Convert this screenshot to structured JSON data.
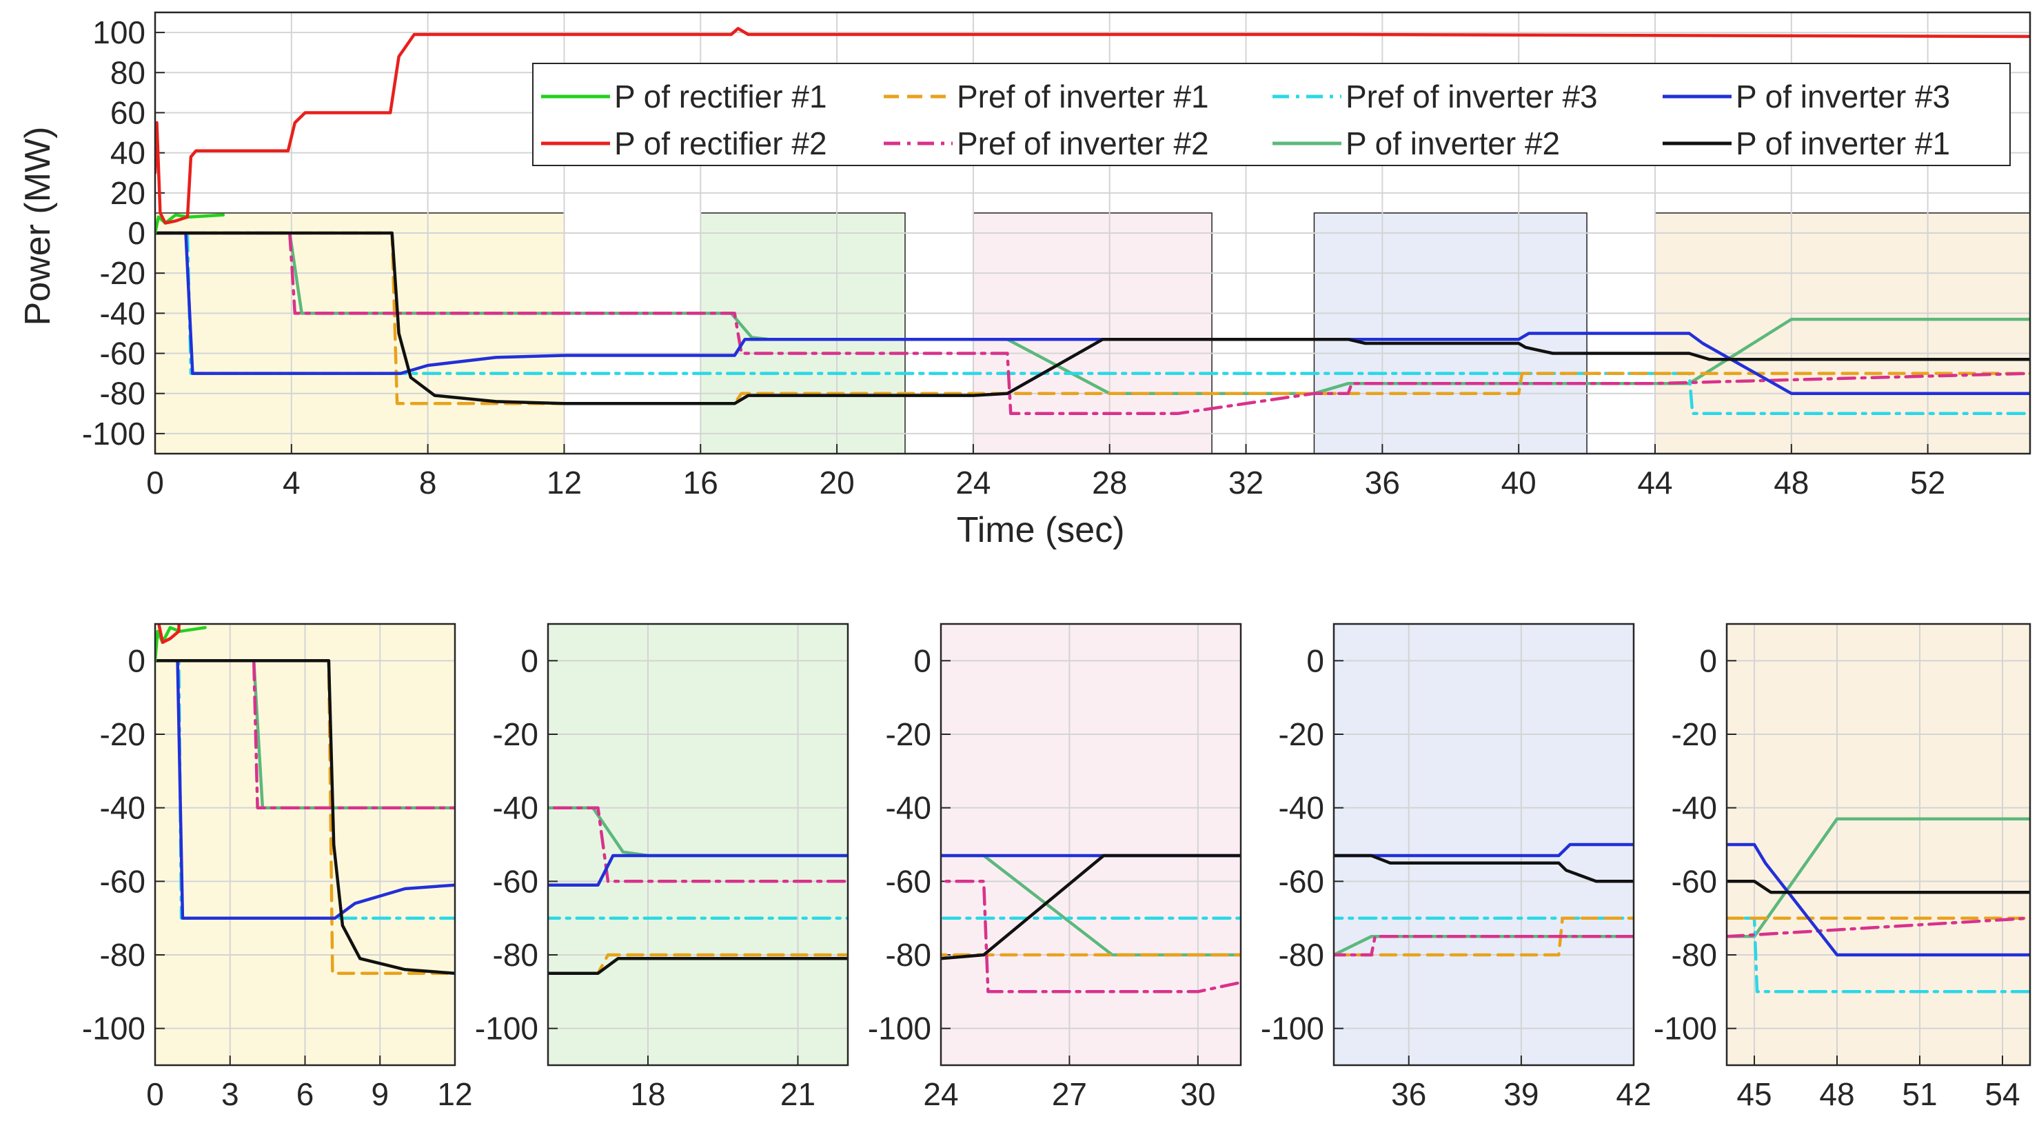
{
  "chart_data": [
    {
      "id": "main",
      "type": "line",
      "title": "",
      "xlabel": "Time (sec)",
      "ylabel": "Power (MW)",
      "xlim": [
        0,
        55
      ],
      "ylim": [
        -110,
        110
      ],
      "xticks": [
        0,
        4,
        8,
        12,
        16,
        20,
        24,
        28,
        32,
        36,
        40,
        44,
        48,
        52
      ],
      "yticks": [
        100,
        80,
        60,
        40,
        20,
        0,
        -20,
        -40,
        -60,
        -80,
        -100
      ],
      "grid": true,
      "legend_position": "top-right",
      "legend_columns": 4,
      "highlight_regions": [
        {
          "x": [
            0,
            12
          ],
          "y": [
            -110,
            10
          ],
          "color": "#fdf8dc"
        },
        {
          "x": [
            16,
            22
          ],
          "y": [
            -110,
            10
          ],
          "color": "#e6f5e1"
        },
        {
          "x": [
            24,
            31
          ],
          "y": [
            -110,
            10
          ],
          "color": "#fbeef3"
        },
        {
          "x": [
            34,
            42
          ],
          "y": [
            -110,
            10
          ],
          "color": "#e7ecf8"
        },
        {
          "x": [
            44,
            55
          ],
          "y": [
            -110,
            10
          ],
          "color": "#fbf1e1"
        }
      ],
      "series": [
        {
          "name": "P of rectifier #1",
          "color": "#23d11f",
          "dash": "solid",
          "x": [
            0,
            0.1,
            0.3,
            0.6,
            1,
            2
          ],
          "y": [
            0,
            8,
            5,
            9,
            8,
            9
          ]
        },
        {
          "name": "P of rectifier #2",
          "color": "#e8201c",
          "dash": "solid",
          "x": [
            0,
            0.05,
            0.15,
            0.3,
            0.6,
            0.95,
            1.05,
            1.2,
            3.9,
            4.1,
            4.4,
            6.9,
            7.15,
            7.6,
            16.9,
            17.1,
            17.4,
            35,
            55
          ],
          "y": [
            30,
            55,
            10,
            5,
            6,
            8,
            38,
            41,
            41,
            55,
            60,
            60,
            88,
            99,
            99,
            102,
            99,
            99,
            98
          ]
        },
        {
          "name": "Pref of inverter #1",
          "color": "#e8a21c",
          "dash": "dash",
          "x": [
            0,
            6.95,
            7.1,
            17,
            17.2,
            20,
            24,
            25,
            30,
            34,
            35,
            40,
            40.1,
            55
          ],
          "y": [
            0,
            0,
            -85,
            -85,
            -80,
            -80,
            -80,
            -80,
            -80,
            -80,
            -80,
            -80,
            -70,
            -70
          ]
        },
        {
          "name": "Pref of inverter #2",
          "color": "#d8328c",
          "dash": "dashdot",
          "x": [
            0,
            3.95,
            4.1,
            17,
            17.2,
            25,
            25.1,
            30,
            34,
            35,
            35.1,
            40,
            44,
            55
          ],
          "y": [
            0,
            0,
            -40,
            -40,
            -60,
            -60,
            -90,
            -90,
            -80,
            -80,
            -75,
            -75,
            -75,
            -70
          ]
        },
        {
          "name": "Pref of inverter #3",
          "color": "#2ad8e6",
          "dash": "dashdot",
          "x": [
            0,
            0.95,
            1.05,
            45,
            45.1,
            55
          ],
          "y": [
            0,
            0,
            -70,
            -70,
            -90,
            -90
          ]
        },
        {
          "name": "P of inverter #2",
          "color": "#5cb87c",
          "dash": "solid",
          "x": [
            0,
            3.95,
            4.3,
            16.9,
            17.5,
            18,
            25,
            28,
            34,
            35,
            40,
            45,
            48,
            55
          ],
          "y": [
            0,
            0,
            -40,
            -40,
            -52,
            -53,
            -53,
            -80,
            -80,
            -75,
            -75,
            -75,
            -43,
            -43
          ]
        },
        {
          "name": "P of inverter #3",
          "color": "#2230d8",
          "dash": "solid",
          "x": [
            0,
            0.9,
            1.1,
            7.2,
            8,
            10,
            12,
            17,
            17.3,
            22,
            25,
            34,
            40,
            40.3,
            44,
            45,
            45.4,
            48,
            51,
            55
          ],
          "y": [
            0,
            0,
            -70,
            -70,
            -66,
            -62,
            -61,
            -61,
            -53,
            -53,
            -53,
            -53,
            -53,
            -50,
            -50,
            -50,
            -55,
            -80,
            -80,
            -80
          ]
        },
        {
          "name": "P of inverter #1",
          "color": "#111111",
          "dash": "solid",
          "x": [
            0,
            6.95,
            7.15,
            7.5,
            8.2,
            10,
            12,
            16,
            17,
            17.4,
            22,
            24,
            25,
            27.8,
            34,
            35,
            35.5,
            40,
            40.2,
            41,
            44,
            45,
            45.6,
            55
          ],
          "y": [
            0,
            0,
            -50,
            -72,
            -81,
            -84,
            -85,
            -85,
            -85,
            -81,
            -81,
            -81,
            -80,
            -53,
            -53,
            -53,
            -55,
            -55,
            -57,
            -60,
            -60,
            -60,
            -63,
            -63
          ]
        }
      ],
      "legend_order": [
        "P of rectifier #1",
        "Pref of inverter #1",
        "Pref of inverter #3",
        "P of inverter #3",
        "P of rectifier #2",
        "Pref of inverter #2",
        "P of inverter #2",
        "P of inverter #1"
      ]
    },
    {
      "id": "zoom1",
      "type": "line",
      "xlim": [
        0,
        12
      ],
      "ylim": [
        -110,
        10
      ],
      "xticks": [
        0,
        3,
        6,
        9,
        12
      ],
      "yticks": [
        0,
        -20,
        -40,
        -60,
        -80,
        -100
      ],
      "background": "#fdf8dc",
      "grid": true
    },
    {
      "id": "zoom2",
      "type": "line",
      "xlim": [
        16,
        22
      ],
      "ylim": [
        -110,
        10
      ],
      "xticks": [
        18,
        21
      ],
      "yticks": [
        0,
        -20,
        -40,
        -60,
        -80,
        -100
      ],
      "background": "#e6f5e1",
      "grid": true
    },
    {
      "id": "zoom3",
      "type": "line",
      "xlim": [
        24,
        31
      ],
      "ylim": [
        -110,
        10
      ],
      "xticks": [
        24,
        27,
        30
      ],
      "yticks": [
        0,
        -20,
        -40,
        -60,
        -80,
        -100
      ],
      "background": "#fbeef3",
      "grid": true
    },
    {
      "id": "zoom4",
      "type": "line",
      "xlim": [
        34,
        42
      ],
      "ylim": [
        -110,
        10
      ],
      "xticks": [
        36,
        39,
        42
      ],
      "yticks": [
        0,
        -20,
        -40,
        -60,
        -80,
        -100
      ],
      "background": "#e7ecf8",
      "grid": true
    },
    {
      "id": "zoom5",
      "type": "line",
      "xlim": [
        44,
        55
      ],
      "ylim": [
        -110,
        10
      ],
      "xticks": [
        45,
        48,
        51,
        54
      ],
      "yticks": [
        0,
        -20,
        -40,
        -60,
        -80,
        -100
      ],
      "background": "#fbf1e1",
      "grid": true
    }
  ]
}
